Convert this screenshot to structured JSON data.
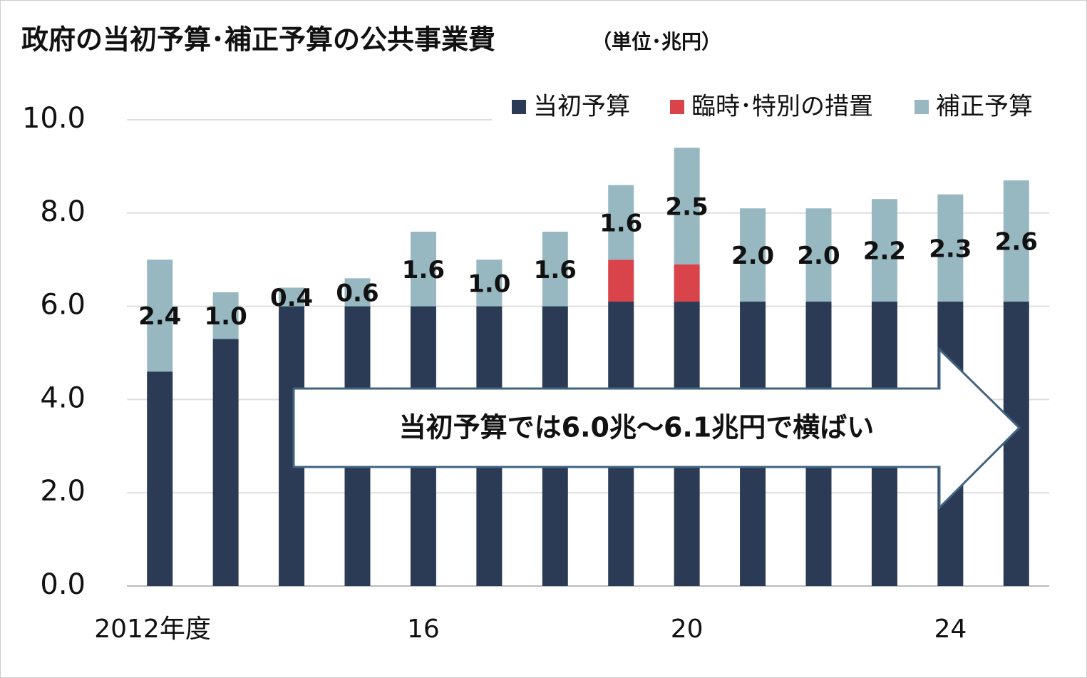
{
  "chart_data": {
    "type": "stacked-bar",
    "title": "政府の当初予算･補正予算の公共事業費",
    "subtitle": "（単位･兆円）",
    "categories": [
      "2012年度",
      null,
      null,
      null,
      "16",
      null,
      null,
      null,
      "20",
      null,
      null,
      null,
      "24",
      null
    ],
    "series": [
      {
        "name": "当初予算",
        "color": "#2b3a55",
        "values": [
          4.6,
          5.3,
          6.0,
          6.0,
          6.0,
          6.0,
          6.0,
          6.1,
          6.1,
          6.1,
          6.1,
          6.1,
          6.1,
          6.1
        ]
      },
      {
        "name": "臨時･特別の措置",
        "color": "#d9434a",
        "values": [
          null,
          null,
          null,
          null,
          null,
          null,
          null,
          0.9,
          0.8,
          null,
          null,
          null,
          null,
          null
        ]
      },
      {
        "name": "補正予算",
        "color": "#97b8c1",
        "values": [
          2.4,
          1.0,
          0.4,
          0.6,
          1.6,
          1.0,
          1.6,
          1.6,
          2.5,
          2.0,
          2.0,
          2.2,
          2.3,
          2.6
        ],
        "value_labels": [
          "2.4",
          "1.0",
          "0.4",
          "0.6",
          "1.6",
          "1.0",
          "1.6",
          "1.6",
          "2.5",
          "2.0",
          "2.0",
          "2.2",
          "2.3",
          "2.6"
        ]
      }
    ],
    "ylim": [
      0,
      10
    ],
    "yticks": [
      {
        "value": 0,
        "label": "0.0"
      },
      {
        "value": 2,
        "label": "2.0"
      },
      {
        "value": 4,
        "label": "4.0"
      },
      {
        "value": 6,
        "label": "6.0"
      },
      {
        "value": 8,
        "label": "8.0"
      },
      {
        "value": 10,
        "label": "10.0"
      }
    ],
    "grid": true,
    "legend": "top-right",
    "annotation": "当初予算では6.0兆～6.1兆円で横ばい"
  }
}
